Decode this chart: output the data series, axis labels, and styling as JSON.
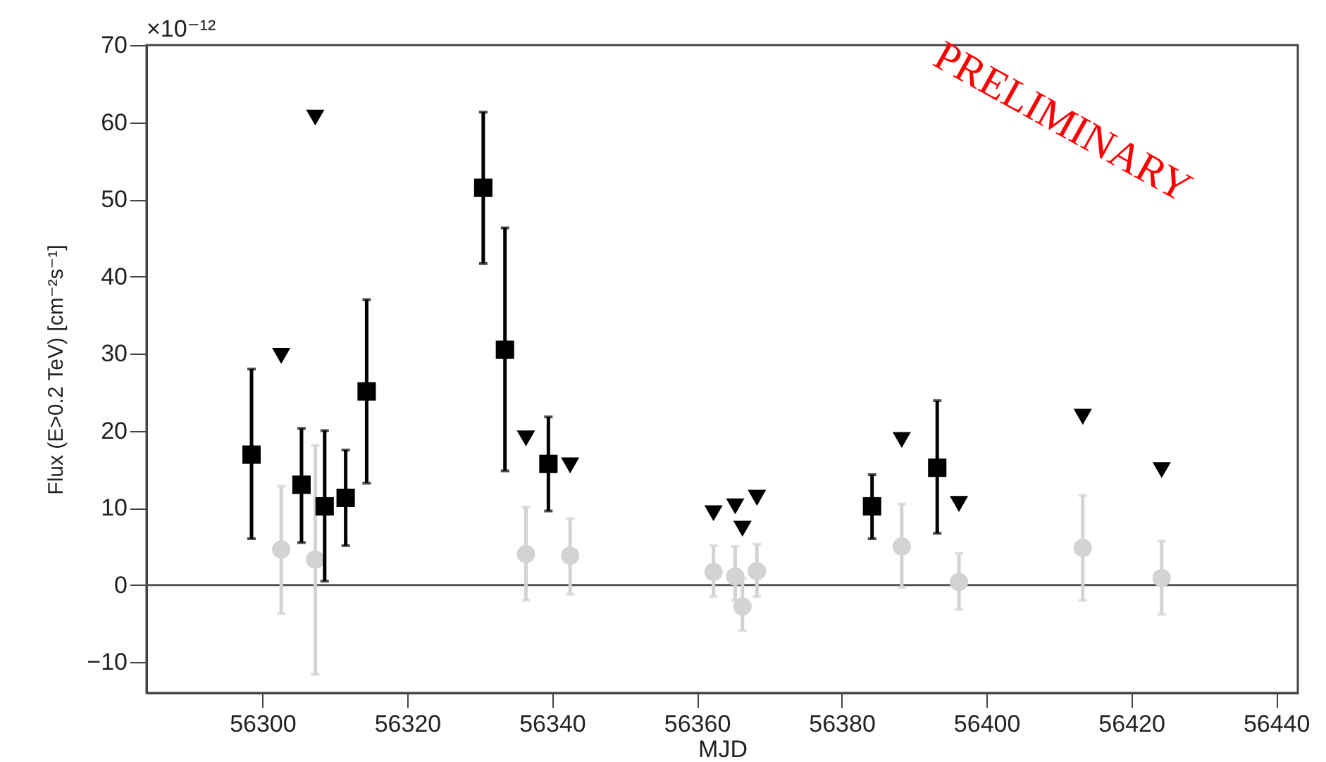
{
  "chart_data": {
    "type": "scatter",
    "xlabel": "MJD",
    "ylabel": "Flux (E>0.2 TeV) [cm⁻²s⁻¹]",
    "annotations": [
      "×10⁻¹²",
      "PRELIMINARY"
    ],
    "xlim": [
      56284,
      56443
    ],
    "xticks": [
      56300,
      56320,
      56340,
      56360,
      56380,
      56400,
      56420,
      56440
    ],
    "ylim": [
      -14,
      70
    ],
    "yticks": [
      -10,
      0,
      10,
      20,
      30,
      40,
      50,
      60,
      70
    ],
    "grid": false,
    "ref_lines": [
      {
        "axis": "y",
        "value": 0,
        "color": "#555555"
      }
    ],
    "series": [
      {
        "color": "#d3d3d3",
        "marker": "circle",
        "x": [
          56302.6,
          56307.3,
          56336.4,
          56342.5,
          56362.3,
          56365.3,
          56366.3,
          56368.3,
          56388.3,
          56396.2,
          56413.3,
          56424.2
        ],
        "values": [
          4.6,
          3.3,
          4.0,
          3.8,
          1.7,
          1.1,
          -2.8,
          1.8,
          5.0,
          0.4,
          4.8,
          0.9
        ],
        "errors": [
          [
            -3.7,
            12.8
          ],
          [
            -11.6,
            18.1
          ],
          [
            -2.0,
            10.1
          ],
          [
            -1.2,
            8.6
          ],
          [
            -1.5,
            5.1
          ],
          [
            -2.0,
            5.0
          ],
          [
            -5.9,
            0.9
          ],
          [
            -1.5,
            5.3
          ],
          [
            -0.3,
            10.5
          ],
          [
            -3.2,
            4.1
          ],
          [
            -2.0,
            11.6
          ],
          [
            -3.8,
            5.7
          ]
        ]
      },
      {
        "color": "#000000",
        "marker": "square",
        "x": [
          56298.5,
          56305.4,
          56308.6,
          56311.5,
          56314.4,
          56330.5,
          56333.5,
          56339.5,
          56384.2,
          56393.2
        ],
        "values": [
          16.9,
          13.0,
          10.2,
          11.3,
          25.1,
          51.5,
          30.5,
          15.7,
          10.2,
          15.2
        ],
        "errors": [
          [
            6.0,
            28.0
          ],
          [
            5.5,
            20.3
          ],
          [
            0.5,
            20.0
          ],
          [
            5.1,
            17.5
          ],
          [
            13.2,
            37.0
          ],
          [
            41.7,
            61.3
          ],
          [
            14.8,
            46.3
          ],
          [
            9.6,
            21.8
          ],
          [
            6.0,
            14.3
          ],
          [
            6.7,
            23.9
          ]
        ]
      },
      {
        "color": "#000000",
        "marker": "triangle",
        "x": [
          56302.6,
          56307.3,
          56336.4,
          56342.5,
          56362.3,
          56365.3,
          56366.3,
          56368.3,
          56388.3,
          56396.2,
          56413.3,
          56424.2
        ],
        "values": [
          29.7,
          60.6,
          19.0,
          15.5,
          9.3,
          10.2,
          7.3,
          11.3,
          18.8,
          10.5,
          21.8,
          14.9
        ]
      }
    ]
  }
}
